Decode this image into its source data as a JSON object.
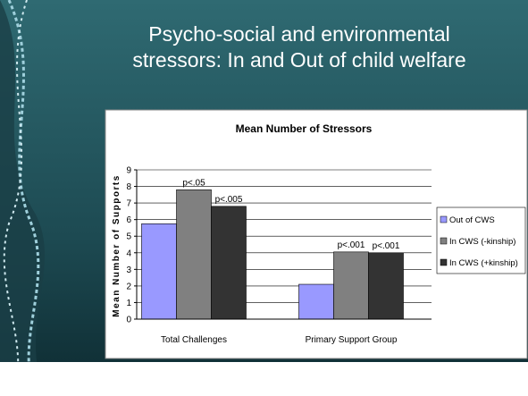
{
  "slide": {
    "title_lines": [
      "Psycho-social and environmental",
      "stressors: In and Out of child welfare"
    ]
  },
  "chart_data": {
    "type": "bar",
    "title": "Mean Number of Stressors",
    "y_label": "Mean Number of Supports",
    "categories": [
      "Total Challenges",
      "Primary Support Group"
    ],
    "series": [
      {
        "name": "Out of CWS",
        "color": "#9999ff",
        "values": [
          5.75,
          2.1
        ]
      },
      {
        "name": "In  CWS (-kinship)",
        "color": "#808080",
        "values": [
          7.8,
          4.05
        ],
        "annotations": [
          "p<.05",
          "p<.001"
        ]
      },
      {
        "name": "In CWS (+kinship)",
        "color": "#333333",
        "values": [
          6.8,
          4.0
        ],
        "annotations": [
          "p<.005",
          "p<.001"
        ]
      }
    ],
    "ylim": [
      0,
      9
    ],
    "yticks": [
      0,
      1,
      2,
      3,
      4,
      5,
      6,
      7,
      8,
      9
    ],
    "grid": true,
    "legend": "right"
  }
}
